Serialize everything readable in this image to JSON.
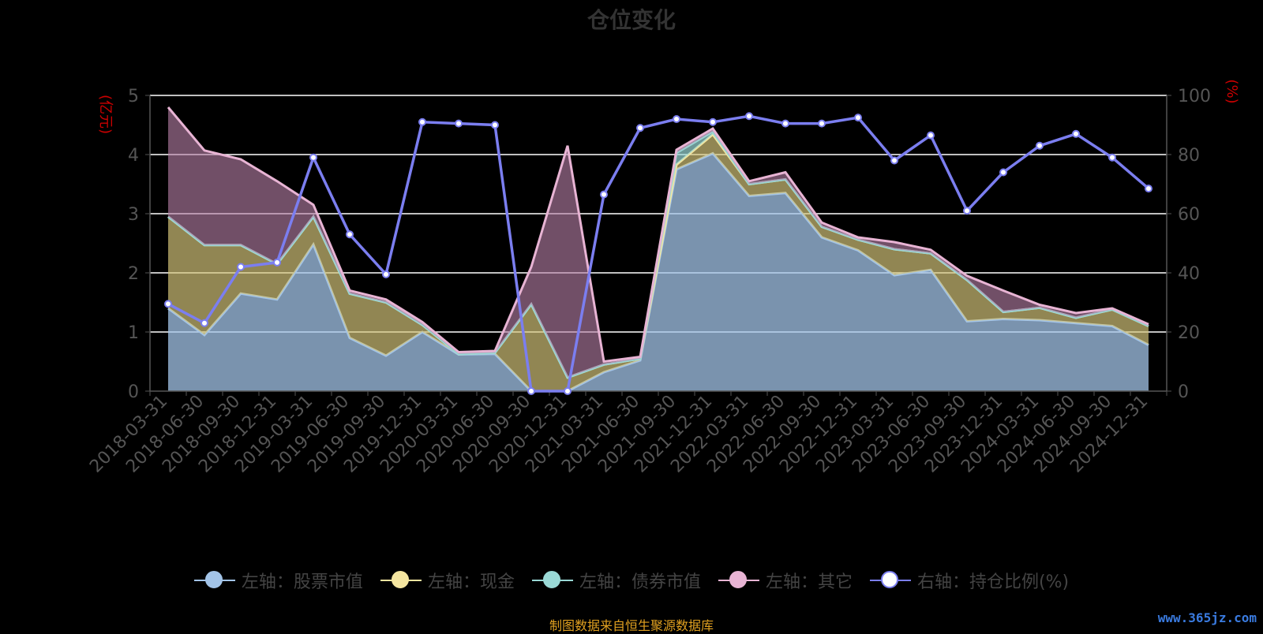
{
  "title": "仓位变化",
  "source_note": "制图数据来自恒生聚源数据库",
  "watermark": "www.365jz.com",
  "legend": [
    {
      "label": "左轴：股票市值",
      "color": "#a3c4e8",
      "fill": "#a3c4e8",
      "key": "stock"
    },
    {
      "label": "左轴：现金",
      "color": "#f5e6a0",
      "fill": "#f5e6a0",
      "key": "cash"
    },
    {
      "label": "左轴：债券市值",
      "color": "#9ad9d6",
      "fill": "#9ad9d6",
      "key": "bond"
    },
    {
      "label": "左轴：其它",
      "color": "#e8b4d4",
      "fill": "#e8b4d4",
      "key": "other"
    },
    {
      "label": "右轴：持仓比例(%)",
      "color": "#7b7ef0",
      "fill": "#ffffff",
      "key": "ratio"
    }
  ],
  "chart_data": {
    "type": "area",
    "ylabel_left": "(亿元)",
    "ylabel_right": "(%)",
    "ylim_left": [
      0,
      5
    ],
    "ylim_right": [
      0,
      100
    ],
    "yticks_left": [
      "0",
      "1",
      "2",
      "3",
      "4",
      "5"
    ],
    "yticks_right": [
      "0",
      "20",
      "40",
      "60",
      "80",
      "100"
    ],
    "grid": true,
    "legend_position": "bottom",
    "x": [
      "2018-03-31",
      "2018-06-30",
      "2018-09-30",
      "2018-12-31",
      "2019-03-31",
      "2019-06-30",
      "2019-09-30",
      "2019-12-31",
      "2020-03-31",
      "2020-06-30",
      "2020-09-30",
      "2020-12-31",
      "2021-03-31",
      "2021-06-30",
      "2021-09-30",
      "2021-12-31",
      "2022-03-31",
      "2022-06-30",
      "2022-09-30",
      "2022-12-31",
      "2023-03-31",
      "2023-06-30",
      "2023-09-30",
      "2023-12-31",
      "2024-03-31",
      "2024-06-30",
      "2024-09-30",
      "2024-12-31"
    ],
    "series": [
      {
        "name": "左轴：股票市值",
        "axis": "left",
        "stacked": true,
        "values": [
          1.4,
          0.95,
          1.65,
          1.55,
          2.48,
          0.9,
          0.6,
          1.0,
          0.62,
          0.63,
          0.0,
          0.0,
          0.32,
          0.52,
          3.75,
          4.02,
          3.3,
          3.35,
          2.6,
          2.38,
          1.96,
          2.05,
          1.18,
          1.22,
          1.2,
          1.15,
          1.1,
          0.78
        ]
      },
      {
        "name": "左轴：现金",
        "axis": "left",
        "stacked": true,
        "values": [
          1.55,
          1.52,
          0.82,
          0.6,
          0.47,
          0.75,
          0.9,
          0.12,
          0.01,
          0.02,
          1.47,
          0.23,
          0.13,
          0.03,
          0.08,
          0.32,
          0.2,
          0.23,
          0.18,
          0.18,
          0.44,
          0.28,
          0.7,
          0.12,
          0.21,
          0.09,
          0.28,
          0.32
        ]
      },
      {
        "name": "左轴：债券市值",
        "axis": "left",
        "stacked": true,
        "values": [
          0,
          0,
          0,
          0,
          0,
          0,
          0,
          0,
          0,
          0,
          0,
          0,
          0,
          0,
          0.2,
          0.05,
          0,
          0,
          0,
          0,
          0,
          0,
          0,
          0,
          0,
          0,
          0,
          0
        ]
      },
      {
        "name": "左轴：其它",
        "axis": "left",
        "stacked": true,
        "values": [
          1.85,
          1.6,
          1.45,
          1.4,
          0.2,
          0.05,
          0.05,
          0.05,
          0.03,
          0.03,
          0.63,
          3.92,
          0.05,
          0.03,
          0.05,
          0.05,
          0.05,
          0.12,
          0.07,
          0.04,
          0.12,
          0.06,
          0.07,
          0.36,
          0.05,
          0.08,
          0.02,
          0.03
        ]
      },
      {
        "name": "右轴：持仓比例(%)",
        "axis": "right",
        "type": "line",
        "values": [
          29.5,
          23.0,
          42.0,
          43.5,
          79.0,
          53.0,
          39.5,
          91.0,
          90.5,
          90.0,
          0.0,
          0.0,
          66.5,
          89.0,
          92.0,
          91.0,
          93.0,
          90.5,
          90.5,
          92.5,
          78.0,
          86.5,
          61.0,
          74.0,
          83.0,
          87.0,
          79.0,
          68.5
        ]
      }
    ]
  }
}
